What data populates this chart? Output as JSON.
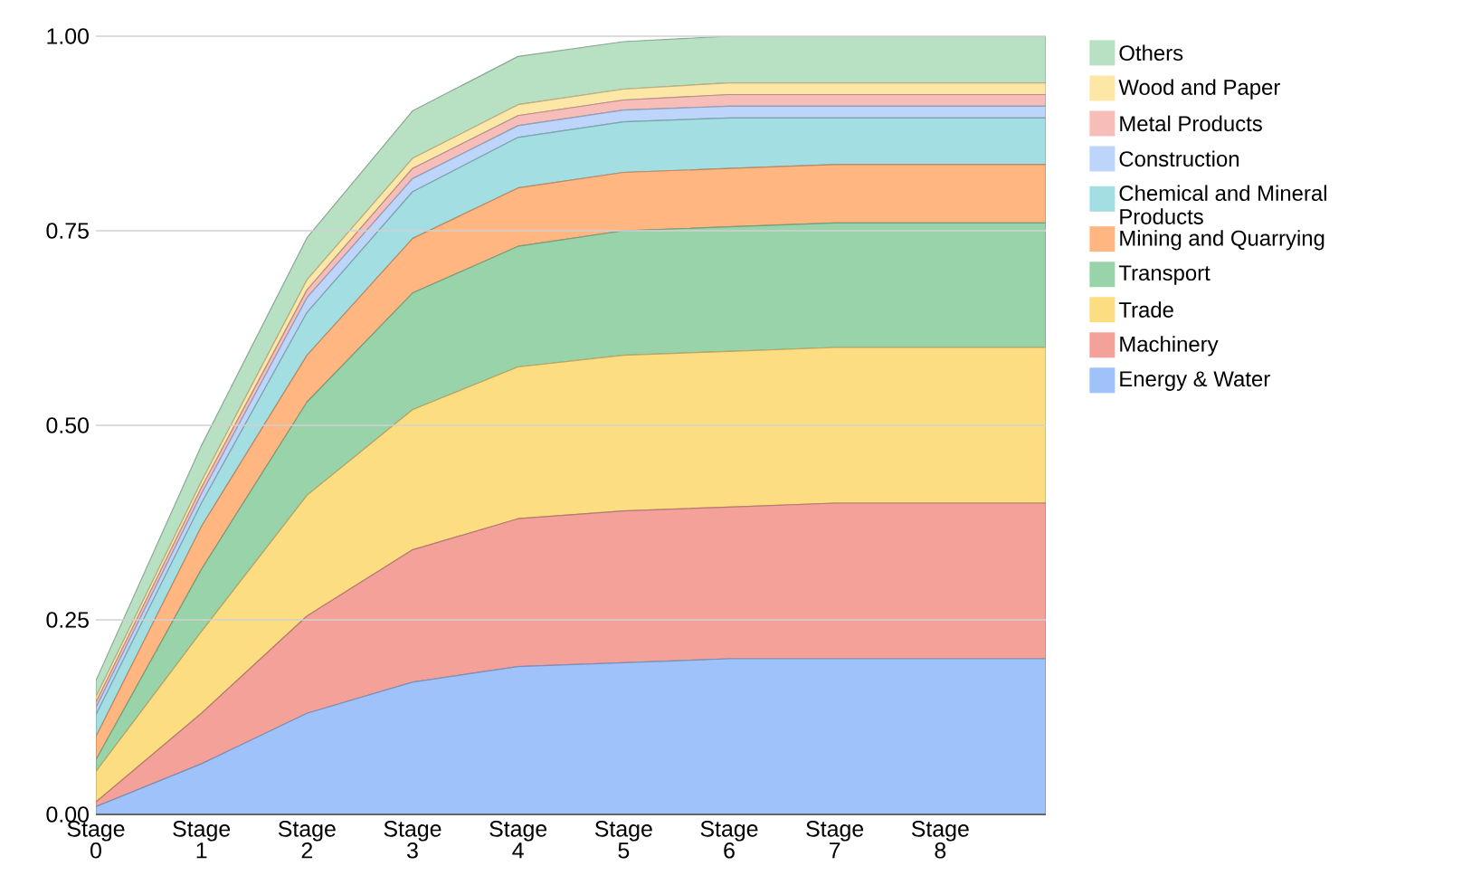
{
  "chart_data": {
    "type": "area",
    "stacked": true,
    "legend": "right",
    "grid": "y",
    "categories": [
      "Stage 0",
      "Stage 1",
      "Stage 2",
      "Stage 3",
      "Stage 4",
      "Stage 5",
      "Stage 6",
      "Stage 7",
      "Stage 8",
      null
    ],
    "ylim": [
      0,
      1
    ],
    "yticks": [
      {
        "value": 0,
        "label": "0.00"
      },
      {
        "value": 0.25,
        "label": "0.25"
      },
      {
        "value": 0.5,
        "label": "0.50"
      },
      {
        "value": 0.75,
        "label": "0.75"
      },
      {
        "value": 1,
        "label": "1.00"
      }
    ],
    "series": [
      {
        "name": "Energy & Water",
        "color": "#a0c2fa",
        "values": [
          0.01,
          0.065,
          0.13,
          0.17,
          0.19,
          0.195,
          0.2,
          0.2,
          0.2,
          0.2
        ]
      },
      {
        "name": "Machinery",
        "color": "#f4a19a",
        "values": [
          0.006,
          0.065,
          0.125,
          0.17,
          0.19,
          0.195,
          0.195,
          0.2,
          0.2,
          0.2
        ]
      },
      {
        "name": "Trade",
        "color": "#fddd81",
        "values": [
          0.039,
          0.105,
          0.155,
          0.18,
          0.195,
          0.2,
          0.2,
          0.2,
          0.2,
          0.2
        ]
      },
      {
        "name": "Transport",
        "color": "#99d3a9",
        "values": [
          0.015,
          0.08,
          0.12,
          0.15,
          0.155,
          0.16,
          0.16,
          0.16,
          0.16,
          0.16
        ]
      },
      {
        "name": "Mining and Quarrying",
        "color": "#ffb680",
        "values": [
          0.03,
          0.055,
          0.06,
          0.07,
          0.075,
          0.075,
          0.075,
          0.075,
          0.075,
          0.075
        ]
      },
      {
        "name": "Chemical and Mineral Products",
        "color": "#a2dee2",
        "values": [
          0.028,
          0.03,
          0.055,
          0.06,
          0.065,
          0.065,
          0.065,
          0.06,
          0.06,
          0.06
        ]
      },
      {
        "name": "Construction",
        "color": "#bdd4fb",
        "values": [
          0.009,
          0.012,
          0.019,
          0.017,
          0.015,
          0.015,
          0.015,
          0.015,
          0.015,
          0.015
        ]
      },
      {
        "name": "Metal Products",
        "color": "#f7bdb8",
        "values": [
          0.007,
          0.008,
          0.01,
          0.013,
          0.013,
          0.013,
          0.015,
          0.015,
          0.015,
          0.015
        ]
      },
      {
        "name": "Wood and Paper",
        "color": "#fde7a7",
        "values": [
          0.007,
          0.008,
          0.013,
          0.013,
          0.014,
          0.014,
          0.015,
          0.015,
          0.015,
          0.015
        ]
      },
      {
        "name": "Others",
        "color": "#b8e0c3",
        "values": [
          0.021,
          0.046,
          0.054,
          0.061,
          0.062,
          0.061,
          0.06,
          0.06,
          0.06,
          0.06
        ]
      }
    ]
  }
}
